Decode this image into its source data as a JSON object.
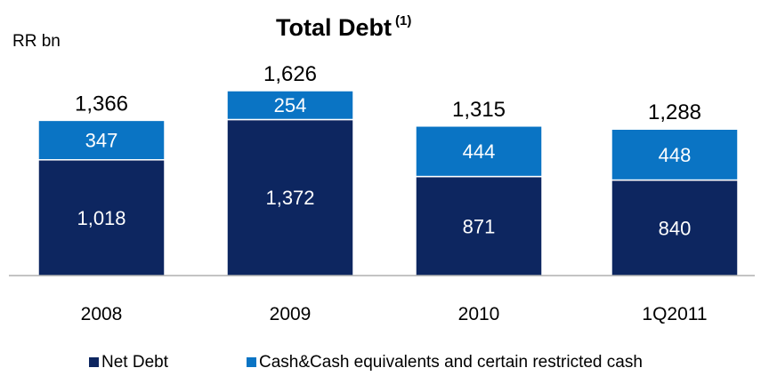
{
  "chart_data": {
    "type": "bar",
    "stacked": true,
    "title": "Total Debt",
    "title_superscript": "(1)",
    "unit_label": "RR bn",
    "categories": [
      "2008",
      "2009",
      "2010",
      "1Q2011"
    ],
    "series": [
      {
        "name": "Net Debt",
        "color": "#0d2660",
        "values": [
          1018,
          1372,
          871,
          840
        ],
        "labels": [
          "1,018",
          "1,372",
          "871",
          "840"
        ]
      },
      {
        "name": "Cash&Cash equivalents and certain restricted cash",
        "color": "#0a74c4",
        "values": [
          347,
          254,
          444,
          448
        ],
        "labels": [
          "347",
          "254",
          "444",
          "448"
        ]
      }
    ],
    "totals": [
      1366,
      1626,
      1315,
      1288
    ],
    "total_labels": [
      "1,366",
      "1,626",
      "1,315",
      "1,288"
    ],
    "ylim": [
      0,
      1626
    ],
    "grid": false,
    "legend_position": "bottom"
  }
}
